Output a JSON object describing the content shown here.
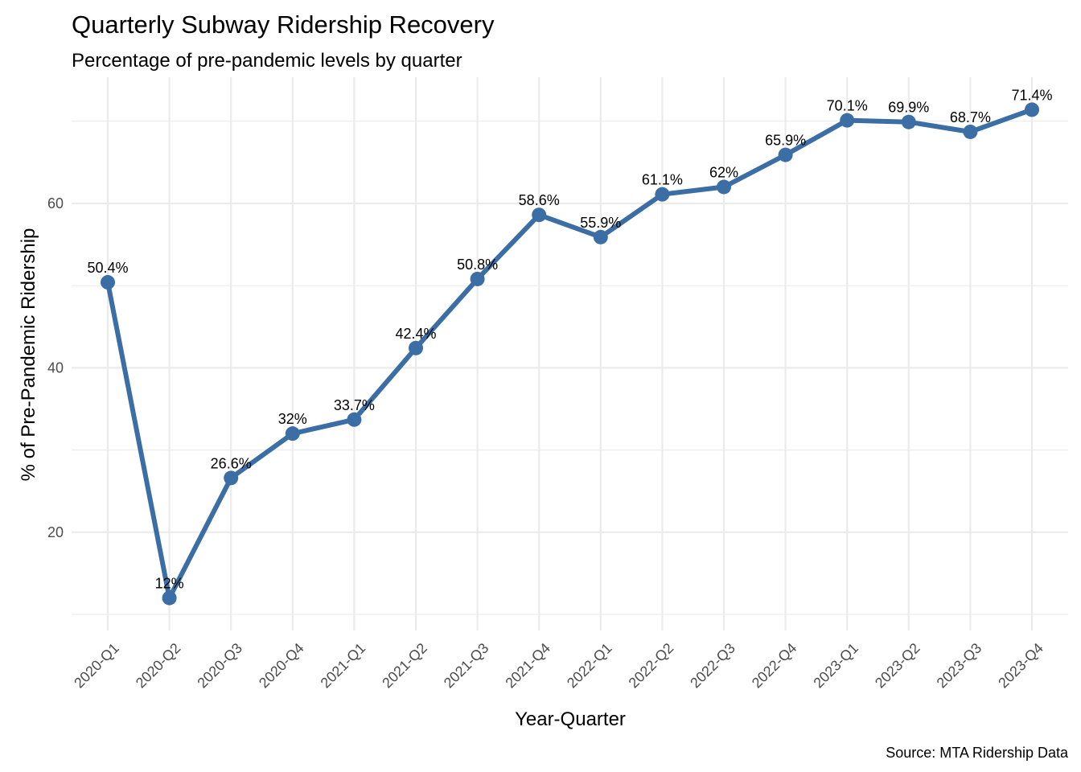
{
  "chart_data": {
    "type": "line",
    "title": "Quarterly Subway Ridership Recovery",
    "subtitle": "Percentage of pre-pandemic levels by quarter",
    "xlabel": "Year-Quarter",
    "ylabel": "% of Pre-Pandemic Ridership",
    "caption": "Source: MTA Ridership Data",
    "categories": [
      "2020-Q1",
      "2020-Q2",
      "2020-Q3",
      "2020-Q4",
      "2021-Q1",
      "2021-Q2",
      "2021-Q3",
      "2021-Q4",
      "2022-Q1",
      "2022-Q2",
      "2022-Q3",
      "2022-Q4",
      "2023-Q1",
      "2023-Q2",
      "2023-Q3",
      "2023-Q4"
    ],
    "values": [
      50.4,
      12,
      26.6,
      32,
      33.7,
      42.4,
      50.8,
      58.6,
      55.9,
      61.1,
      62,
      65.9,
      70.1,
      69.9,
      68.7,
      71.4
    ],
    "data_labels": [
      "50.4%",
      "12%",
      "26.6%",
      "32%",
      "33.7%",
      "42.4%",
      "50.8%",
      "58.6%",
      "55.9%",
      "61.1%",
      "62%",
      "65.9%",
      "70.1%",
      "69.9%",
      "68.7%",
      "71.4%"
    ],
    "yticks": [
      20,
      40,
      60
    ],
    "ylim": [
      8.05,
      75.35
    ],
    "grid": true,
    "line_color": "#3a6ea5",
    "grid_color": "#ebebeb"
  }
}
